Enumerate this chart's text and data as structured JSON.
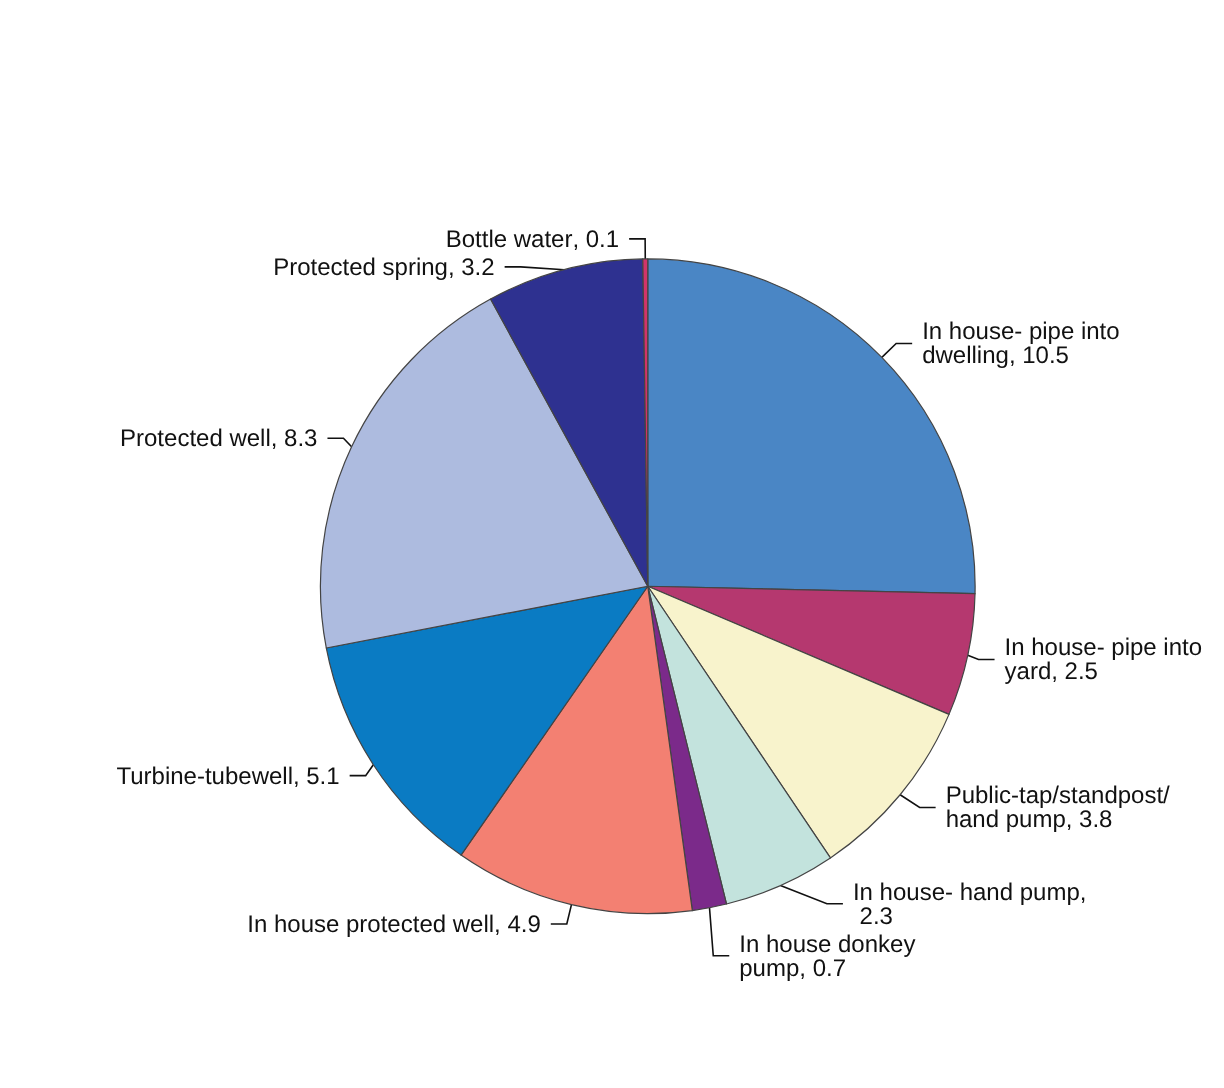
{
  "chart_data": {
    "type": "pie",
    "categories": [
      "In house- pipe into dwelling",
      "In house- pipe into yard",
      "Public-tap/standpost/hand pump",
      "In house- hand pump",
      "In house donkey pump",
      "In house protected well",
      "Turbine-tubewell",
      "Protected well",
      "Protected spring",
      "Bottle water"
    ],
    "values": [
      10.5,
      2.5,
      3.8,
      2.3,
      0.7,
      4.9,
      5.1,
      8.3,
      3.2,
      0.1
    ],
    "colors": [
      "#4a86c5",
      "#b5386f",
      "#f8f3cc",
      "#c3e3dd",
      "#7b2a8a",
      "#f38072",
      "#0a7bc3",
      "#adbbdf",
      "#2e3190",
      "#d1346b"
    ],
    "value_labels": [
      ", 10.5",
      ", 2.5",
      ", 3.8",
      ", 2.3",
      ", 0.7",
      ", 4.9",
      ", 5.1",
      ", 8.3",
      ", 3.2",
      ", 0.1"
    ],
    "legend": false
  }
}
